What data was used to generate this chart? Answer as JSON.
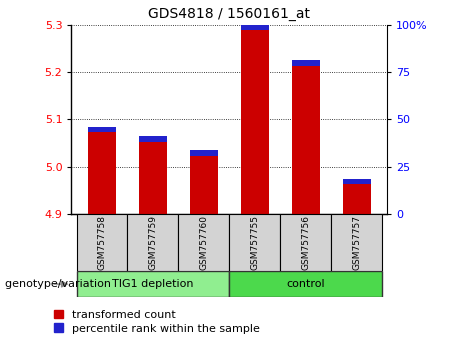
{
  "title": "GDS4818 / 1560161_at",
  "samples": [
    "GSM757758",
    "GSM757759",
    "GSM757760",
    "GSM757755",
    "GSM757756",
    "GSM757757"
  ],
  "red_values": [
    5.085,
    5.065,
    5.035,
    5.305,
    5.225,
    4.975
  ],
  "blue_heights": [
    0.012,
    0.012,
    0.012,
    0.015,
    0.013,
    0.012
  ],
  "ylim": [
    4.9,
    5.3
  ],
  "yticks_left": [
    4.9,
    5.0,
    5.1,
    5.2,
    5.3
  ],
  "yticks_right": [
    0,
    25,
    50,
    75,
    100
  ],
  "bar_width": 0.55,
  "red_color": "#CC0000",
  "blue_color": "#2222CC",
  "base_value": 4.9,
  "legend_red": "transformed count",
  "legend_blue": "percentile rank within the sample",
  "genotype_label": "genotype/variation",
  "group1_label": "TIG1 depletion",
  "group2_label": "control",
  "group1_color": "#90EE90",
  "group2_color": "#4CD94C",
  "sample_bg": "#D3D3D3",
  "plot_bg": "white",
  "title_fontsize": 10,
  "tick_fontsize": 8,
  "label_fontsize": 8,
  "legend_fontsize": 8
}
